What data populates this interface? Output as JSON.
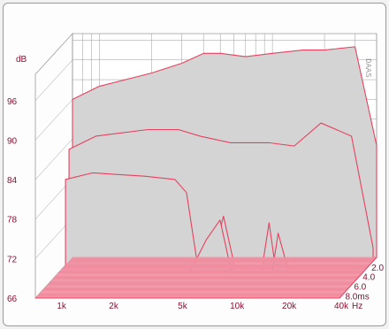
{
  "chart_data": {
    "type": "area",
    "view": "3d-waterfall",
    "brand": "DAAS",
    "y_unit": "dB",
    "y_ticks": [
      "96",
      "90",
      "84",
      "78",
      "72",
      "66"
    ],
    "ylim": [
      66,
      100
    ],
    "x_scale": "log",
    "x_unit": "Hz",
    "x_ticks": [
      "1k",
      "2k",
      "5k",
      "10k",
      "20k",
      "40k"
    ],
    "x_tick_values": [
      1000,
      2000,
      5000,
      10000,
      20000,
      40000
    ],
    "z_ticks": [
      "2.0",
      "4.0",
      "6.0",
      "8.0ms"
    ],
    "z_tick_values": [
      2.0,
      4.0,
      6.0,
      8.0
    ],
    "zlim": [
      0,
      8.5
    ],
    "grid": true,
    "series": [
      {
        "time_ms": 0.0,
        "values": [
          [
            700,
            90
          ],
          [
            1000,
            92
          ],
          [
            2000,
            94
          ],
          [
            3000,
            95.5
          ],
          [
            4000,
            97
          ],
          [
            5000,
            97
          ],
          [
            7000,
            96.5
          ],
          [
            10000,
            97
          ],
          [
            15000,
            97.5
          ],
          [
            20000,
            97.5
          ],
          [
            30000,
            98
          ],
          [
            40000,
            83
          ]
        ]
      },
      {
        "time_ms": 0.8,
        "values": [
          [
            700,
            83
          ],
          [
            1000,
            85
          ],
          [
            2000,
            86
          ],
          [
            3000,
            86
          ],
          [
            4000,
            85
          ],
          [
            6000,
            84
          ],
          [
            10000,
            84
          ],
          [
            14000,
            83.5
          ],
          [
            20000,
            87
          ],
          [
            30000,
            85
          ],
          [
            40000,
            68
          ]
        ]
      },
      {
        "time_ms": 1.6,
        "values": [
          [
            700,
            79
          ],
          [
            1000,
            80
          ],
          [
            2000,
            79.5
          ],
          [
            3000,
            79
          ],
          [
            3500,
            77
          ],
          [
            4000,
            67
          ],
          [
            6000,
            66
          ],
          [
            10000,
            66
          ],
          [
            20000,
            66
          ],
          [
            40000,
            66
          ]
        ]
      },
      {
        "time_ms": 2.4,
        "values": [
          [
            700,
            66
          ],
          [
            5000,
            66
          ],
          [
            6000,
            74
          ],
          [
            7000,
            66
          ],
          [
            10000,
            66
          ],
          [
            11000,
            73
          ],
          [
            12000,
            66
          ],
          [
            20000,
            66
          ],
          [
            40000,
            66
          ]
        ]
      },
      {
        "time_ms": 3.2,
        "values": [
          [
            700,
            66
          ],
          [
            4000,
            66
          ],
          [
            5000,
            71
          ],
          [
            6000,
            74
          ],
          [
            7000,
            66
          ],
          [
            12000,
            66
          ],
          [
            13000,
            72
          ],
          [
            15000,
            66
          ],
          [
            40000,
            66
          ]
        ]
      }
    ]
  }
}
